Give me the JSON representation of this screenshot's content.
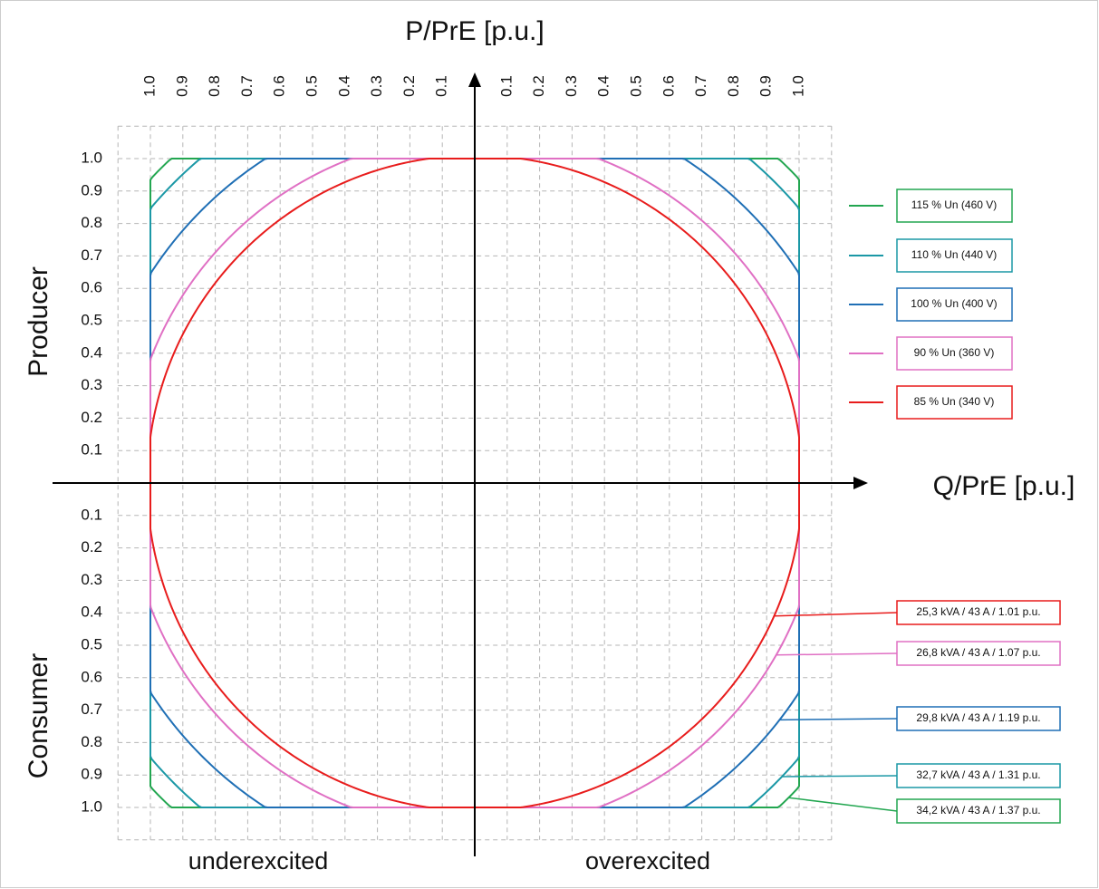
{
  "diagram": {
    "vertical_axis_title": "P/PrE [p.u.]",
    "horizontal_axis_title": "Q/PrE [p.u.]",
    "upper_side_label": "Producer",
    "lower_side_label": "Consumer",
    "left_side_label": "underexcited",
    "right_side_label": "overexcited",
    "ticks": [
      {
        "value": 0.1,
        "label": "0.1"
      },
      {
        "value": 0.2,
        "label": "0.2"
      },
      {
        "value": 0.3,
        "label": "0.3"
      },
      {
        "value": 0.4,
        "label": "0.4"
      },
      {
        "value": 0.5,
        "label": "0.5"
      },
      {
        "value": 0.6,
        "label": "0.6"
      },
      {
        "value": 0.7,
        "label": "0.7"
      },
      {
        "value": 0.8,
        "label": "0.8"
      },
      {
        "value": 0.9,
        "label": "0.9"
      },
      {
        "value": 1.0,
        "label": "1.0"
      }
    ],
    "curves": [
      {
        "name": "115 % Un (460 V)",
        "color": "#22a650",
        "radius": 1.37,
        "callout": "34,2 kVA / 43 A / 1.37 p.u."
      },
      {
        "name": "110 % Un (440 V)",
        "color": "#1b98a6",
        "radius": 1.31,
        "callout": "32,7 kVA / 43 A / 1.31 p.u."
      },
      {
        "name": "100 % Un (400 V)",
        "color": "#1f6fb5",
        "radius": 1.19,
        "callout": "29,8 kVA / 43 A / 1.19 p.u."
      },
      {
        "name": "90 % Un (360 V)",
        "color": "#e070c4",
        "radius": 1.07,
        "callout": "26,8 kVA / 43 A / 1.07 p.u."
      },
      {
        "name": "85 % Un (340 V)",
        "color": "#e81c1c",
        "radius": 1.01,
        "callout": "25,3 kVA / 43 A / 1.01 p.u."
      }
    ]
  }
}
